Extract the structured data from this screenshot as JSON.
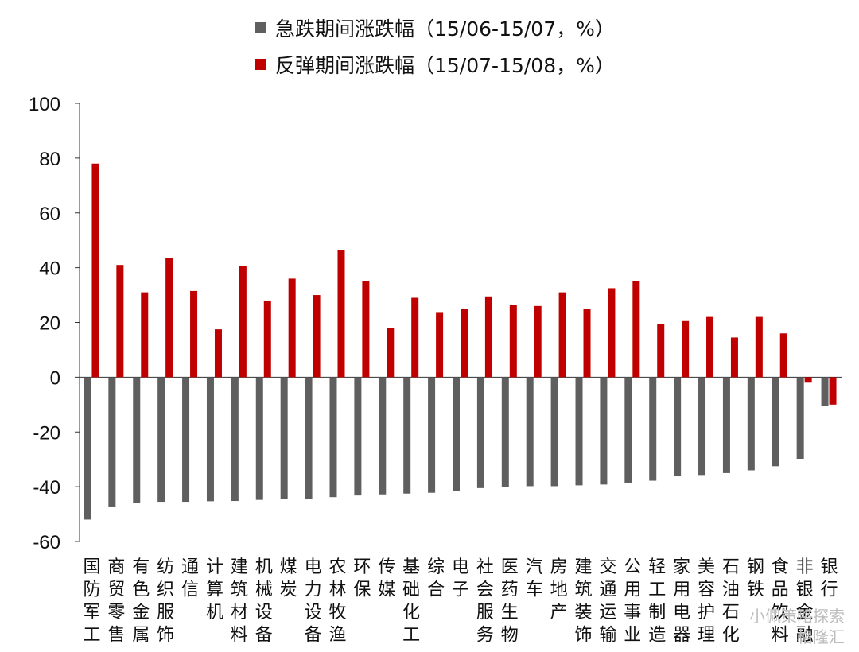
{
  "chart_data": {
    "type": "bar",
    "ylim": [
      -60,
      100
    ],
    "yticks": [
      "100",
      "80",
      "60",
      "40",
      "20",
      "0",
      "-20",
      "-40",
      "-60"
    ],
    "grid": false,
    "legend_position": "top",
    "categories": [
      "国防军工",
      "商贸零售",
      "有色金属",
      "纺织服饰",
      "通信",
      "计算机",
      "建筑材料",
      "机械设备",
      "煤炭",
      "电力设备",
      "农林牧渔",
      "环保",
      "传媒",
      "基础化工",
      "综合",
      "电子",
      "社会服务",
      "医药生物",
      "汽车",
      "房地产",
      "建筑装饰",
      "交通运输",
      "公用事业",
      "轻工制造",
      "家用电器",
      "美容护理",
      "石油石化",
      "钢铁",
      "食品饮料",
      "非银金融",
      "银行"
    ],
    "series": [
      {
        "name": "急跌期间涨跌幅（15/06-15/07，%）",
        "color": "#5f5f5f",
        "values": [
          -52,
          -47.5,
          -46,
          -45.5,
          -45.5,
          -45.3,
          -45.2,
          -44.8,
          -44.5,
          -44.5,
          -43.8,
          -43.2,
          -42.8,
          -42.5,
          -42.2,
          -41.5,
          -40.5,
          -40,
          -39.8,
          -39.8,
          -39.5,
          -39.2,
          -38.5,
          -37.8,
          -36.2,
          -36,
          -35,
          -34,
          -32.5,
          -29.8,
          -10.5
        ]
      },
      {
        "name": "反弹期间涨跌幅（15/07-15/08，%）",
        "color": "#c00000",
        "values": [
          78,
          41,
          31,
          43.5,
          31.5,
          17.5,
          40.5,
          28,
          36,
          30,
          46.5,
          35,
          18,
          29,
          23.5,
          25,
          29.5,
          26.5,
          26,
          31,
          25,
          32.5,
          35,
          19.5,
          20.5,
          22,
          14.5,
          22,
          16,
          -2,
          -10
        ]
      }
    ]
  },
  "watermark": {
    "line1": "小佩策略探索",
    "line2": "格隆汇"
  }
}
